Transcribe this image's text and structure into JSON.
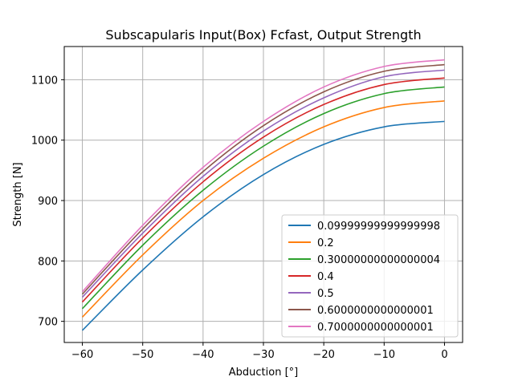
{
  "chart_data": {
    "type": "line",
    "title": "Subscapularis Input(Box) Fcfast, Output Strength",
    "xlabel": "Abduction [°]",
    "ylabel": "Strength [N]",
    "xlim": [
      -63,
      3
    ],
    "ylim": [
      665,
      1155
    ],
    "xticks": [
      -60,
      -50,
      -40,
      -30,
      -20,
      -10,
      0
    ],
    "xtick_labels": [
      "−60",
      "−50",
      "−40",
      "−30",
      "−20",
      "−10",
      "0"
    ],
    "yticks": [
      700,
      800,
      900,
      1000,
      1100
    ],
    "ytick_labels": [
      "700",
      "800",
      "900",
      "1000",
      "1100"
    ],
    "grid": true,
    "legend_position": "lower-right",
    "x": [
      -60,
      -50,
      -40,
      -30,
      -20,
      -10,
      0
    ],
    "series": [
      {
        "name": "0.09999999999999998",
        "color": "#1f77b4",
        "values": [
          685,
          785,
          873,
          943,
          993,
          1022,
          1031
        ]
      },
      {
        "name": "0.2",
        "color": "#ff7f0e",
        "values": [
          707,
          810,
          900,
          970,
          1022,
          1054,
          1065
        ]
      },
      {
        "name": "0.30000000000000004",
        "color": "#2ca02c",
        "values": [
          721,
          826,
          917,
          990,
          1044,
          1077,
          1088
        ]
      },
      {
        "name": "0.4",
        "color": "#d62728",
        "values": [
          732,
          838,
          931,
          1005,
          1059,
          1092,
          1103
        ]
      },
      {
        "name": "0.5",
        "color": "#9467bd",
        "values": [
          740,
          846,
          940,
          1015,
          1070,
          1105,
          1116
        ]
      },
      {
        "name": "0.6000000000000001",
        "color": "#8c564b",
        "values": [
          745,
          853,
          948,
          1024,
          1080,
          1114,
          1125
        ]
      },
      {
        "name": "0.7000000000000001",
        "color": "#e377c2",
        "values": [
          749,
          859,
          955,
          1031,
          1088,
          1122,
          1133
        ]
      }
    ]
  }
}
